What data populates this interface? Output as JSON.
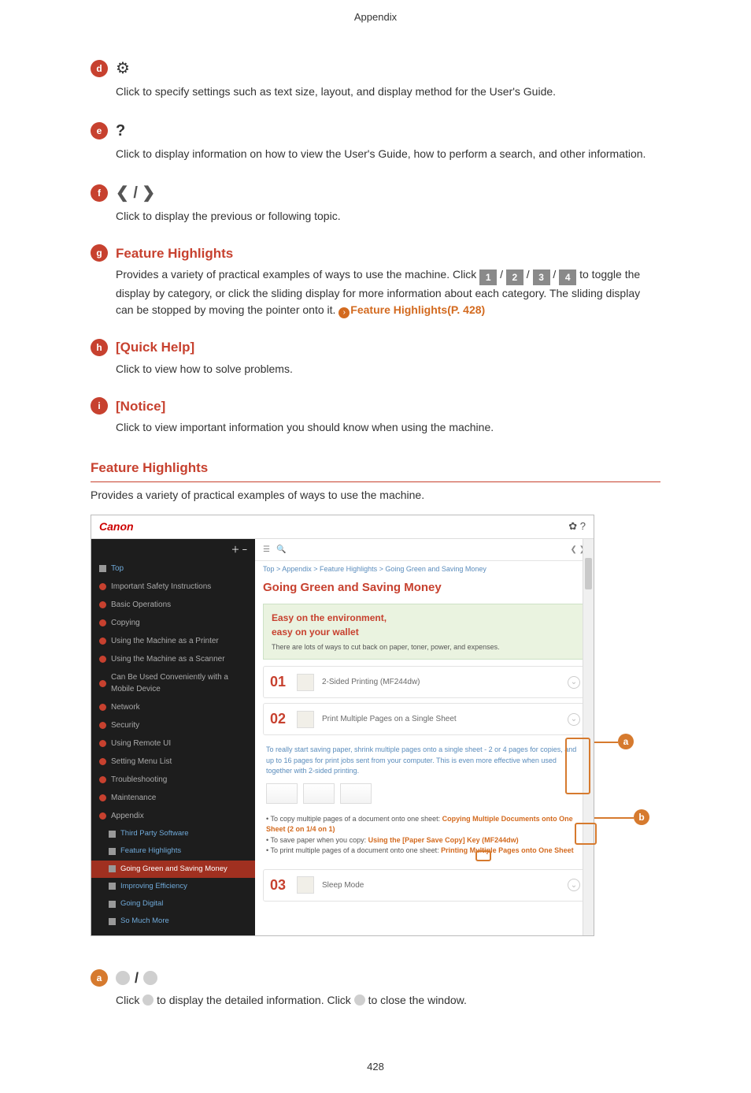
{
  "page_header": "Appendix",
  "page_number": "428",
  "sections": {
    "d": {
      "letter": "d",
      "text": "Click to specify settings such as text size, layout, and display method for the User's Guide."
    },
    "e": {
      "letter": "e",
      "text": "Click to display information on how to view the User's Guide, how to perform a search, and other information."
    },
    "f": {
      "letter": "f",
      "text": "Click to display the previous or following topic."
    },
    "g": {
      "letter": "g",
      "title": "Feature Highlights",
      "text_before": "Provides a variety of practical examples of ways to use the machine. Click ",
      "tabs": [
        "1",
        "2",
        "3",
        "4"
      ],
      "text_mid": " to toggle the display by category, or click the sliding display for more information about each category. The sliding display can be stopped by moving the pointer onto it. ",
      "link": "Feature Highlights(P. 428)"
    },
    "h": {
      "letter": "h",
      "title": "[Quick Help]",
      "text": "Click to view how to solve problems."
    },
    "i": {
      "letter": "i",
      "title": "[Notice]",
      "text": "Click to view important information you should know when using the machine."
    }
  },
  "feature_block": {
    "heading": "Feature Highlights",
    "subtext": "Provides a variety of practical examples of ways to use the machine."
  },
  "screenshot": {
    "brand": "Canon",
    "top_icons": "✿  ?",
    "sidebar_plusminus": "＋ −",
    "sidebar": [
      {
        "icon": "doc",
        "label": "Top",
        "mode": "light"
      },
      {
        "icon": "red",
        "label": "Important Safety Instructions"
      },
      {
        "icon": "red",
        "label": "Basic Operations"
      },
      {
        "icon": "red",
        "label": "Copying"
      },
      {
        "icon": "red",
        "label": "Using the Machine as a Printer"
      },
      {
        "icon": "red",
        "label": "Using the Machine as a Scanner"
      },
      {
        "icon": "red",
        "label": "Can Be Used Conveniently with a Mobile Device"
      },
      {
        "icon": "red",
        "label": "Network"
      },
      {
        "icon": "red",
        "label": "Security"
      },
      {
        "icon": "red",
        "label": "Using Remote UI"
      },
      {
        "icon": "red",
        "label": "Setting Menu List"
      },
      {
        "icon": "red",
        "label": "Troubleshooting"
      },
      {
        "icon": "red",
        "label": "Maintenance"
      },
      {
        "icon": "red",
        "label": "Appendix"
      },
      {
        "icon": "doc",
        "label": "Third Party Software",
        "sub": true,
        "mode": "light"
      },
      {
        "icon": "doc",
        "label": "Feature Highlights",
        "sub": true,
        "mode": "light"
      },
      {
        "icon": "doc",
        "label": "Going Green and Saving Money",
        "sub": true,
        "active": true
      },
      {
        "icon": "doc",
        "label": "Improving Efficiency",
        "sub": true,
        "mode": "light"
      },
      {
        "icon": "doc",
        "label": "Going Digital",
        "sub": true,
        "mode": "light"
      },
      {
        "icon": "doc",
        "label": "So Much More",
        "sub": true,
        "mode": "light"
      }
    ],
    "breadcrumb": "Top > Appendix > Feature Highlights > Going Green and Saving Money",
    "h1": "Going Green and Saving Money",
    "hero_title1": "Easy on the environment,",
    "hero_title2": "easy on your wallet",
    "hero_sub": "There are lots of ways to cut back on paper, toner, power, and expenses.",
    "items": [
      {
        "num": "01",
        "title": "2-Sided Printing (MF244dw)"
      },
      {
        "num": "02",
        "title": "Print Multiple Pages on a Single Sheet"
      }
    ],
    "note": "To really start saving paper, shrink multiple pages onto a single sheet - 2 or 4 pages for copies, and up to 16 pages for print jobs sent from your computer. This is even more effective when used together with 2-sided printing.",
    "tips": [
      {
        "pre": "To copy multiple pages of a document onto one sheet: ",
        "hl": "Copying Multiple Documents onto One Sheet (2 on 1/4 on 1)"
      },
      {
        "pre": "To save paper when you copy: ",
        "hl": "Using the [Paper Save Copy] Key (MF244dw)"
      },
      {
        "pre": "To print multiple pages of a document onto one sheet: ",
        "hl": "Printing Multiple Pages onto One Sheet"
      }
    ],
    "item03": {
      "num": "03",
      "title": "Sleep Mode"
    },
    "callouts": {
      "a": "a",
      "b": "b"
    }
  },
  "below": {
    "letter": "a",
    "text_pre": "Click ",
    "text_mid": " to display the detailed information. Click ",
    "text_post": " to close the window."
  }
}
